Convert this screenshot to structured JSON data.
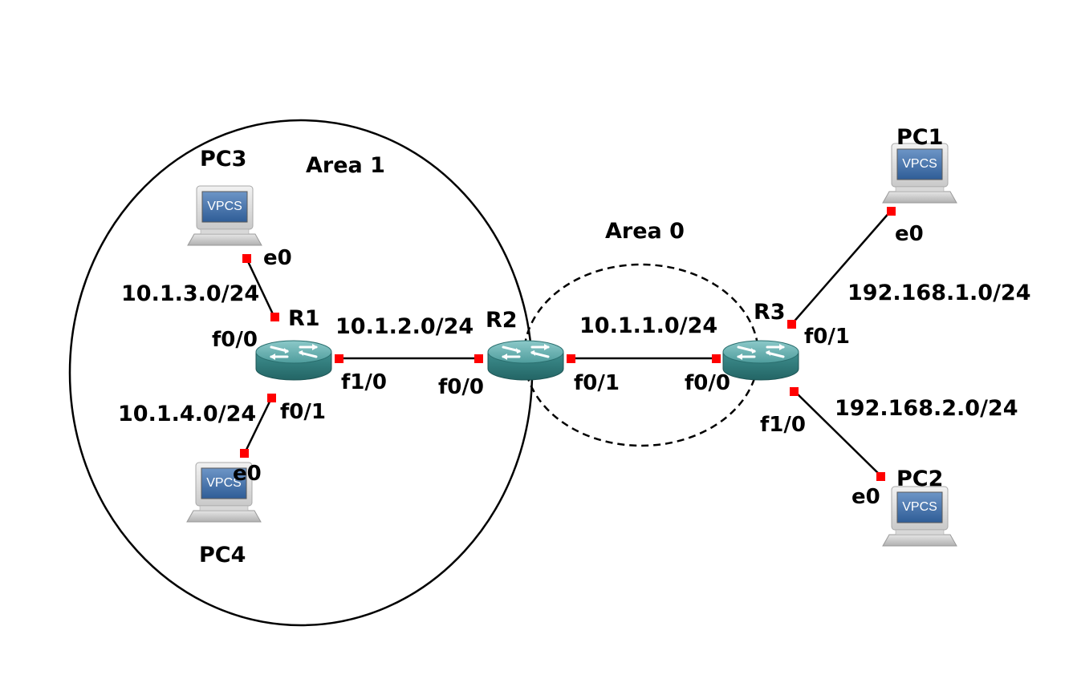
{
  "areas": {
    "area1": "Area 1",
    "area0": "Area 0"
  },
  "routers": {
    "r1": "R1",
    "r2": "R2",
    "r3": "R3"
  },
  "pcs": {
    "pc1": "PC1",
    "pc2": "PC2",
    "pc3": "PC3",
    "pc4": "PC4",
    "badge": "VPCS"
  },
  "subnets": {
    "r1_pc3": "10.1.3.0/24",
    "r1_pc4": "10.1.4.0/24",
    "r1_r2": "10.1.2.0/24",
    "r2_r3": "10.1.1.0/24",
    "r3_pc1": "192.168.1.0/24",
    "r3_pc2": "192.168.2.0/24"
  },
  "interfaces": {
    "pc3_e0": "e0",
    "pc4_e0": "e0",
    "pc1_e0": "e0",
    "pc2_e0": "e0",
    "r1_f00": "f0/0",
    "r1_f01": "f0/1",
    "r1_f10": "f1/0",
    "r2_f00": "f0/0",
    "r2_f01": "f0/1",
    "r3_f00": "f0/0",
    "r3_f01": "f0/1",
    "r3_f10": "f1/0"
  },
  "colors": {
    "port": "#ff0000",
    "router_body": "#3c8c8c",
    "router_top": "#62aeae",
    "vpcs_screen": "#3f6ea8",
    "line": "#000000"
  }
}
